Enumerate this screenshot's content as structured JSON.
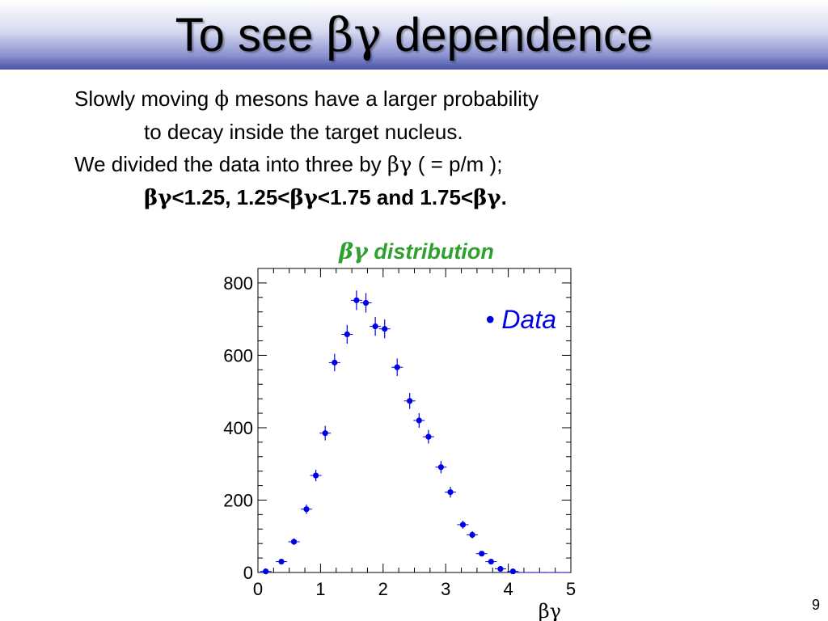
{
  "slide": {
    "title_prefix": "To see ",
    "title_greek": "βγ",
    "title_suffix": " dependence",
    "line1_a": "Slowly moving ",
    "line1_phi": "ϕ",
    "line1_b": " mesons have a larger probability",
    "line2": "to decay inside the target nucleus.",
    "line3_a": "We divided the data into three by ",
    "line3_greek": "βγ",
    "line3_b": " ( = p/m );",
    "line4_g1": "βγ",
    "line4_t1": "<1.25, 1.25<",
    "line4_g2": "βγ",
    "line4_t2": "<1.75 and 1.75<",
    "line4_g3": "βγ",
    "line4_t3": ".",
    "page_number": "9"
  },
  "chart_data": {
    "type": "scatter",
    "title_greek": "βγ",
    "title_text": " distribution",
    "xlabel": "βγ",
    "ylabel": "",
    "xlim": [
      0,
      5
    ],
    "ylim": [
      0,
      840
    ],
    "xticks": [
      0,
      1,
      2,
      3,
      4,
      5
    ],
    "yticks": [
      0,
      200,
      400,
      600,
      800
    ],
    "grid": false,
    "legend": "top-right",
    "colors": {
      "data": "#0000e6",
      "title": "#2ea02e",
      "legend": "#0000e6"
    },
    "series": [
      {
        "name": "Data",
        "x": [
          0.125,
          0.375,
          0.575,
          0.775,
          0.925,
          1.075,
          1.225,
          1.425,
          1.575,
          1.725,
          1.875,
          2.025,
          2.225,
          2.425,
          2.575,
          2.725,
          2.925,
          3.075,
          3.275,
          3.425,
          3.575,
          3.725,
          3.875,
          4.075,
          4.275,
          4.475,
          4.675,
          4.875
        ],
        "y": [
          3,
          30,
          85,
          175,
          268,
          385,
          580,
          658,
          752,
          745,
          680,
          673,
          567,
          474,
          420,
          375,
          291,
          222,
          132,
          104,
          52,
          30,
          10,
          3,
          0,
          0,
          0,
          0
        ],
        "err": [
          2,
          6,
          9,
          13,
          16,
          20,
          24,
          26,
          27,
          27,
          26,
          26,
          24,
          22,
          20,
          19,
          17,
          15,
          11,
          10,
          7,
          6,
          3,
          2,
          0,
          0,
          0,
          0
        ]
      }
    ]
  }
}
